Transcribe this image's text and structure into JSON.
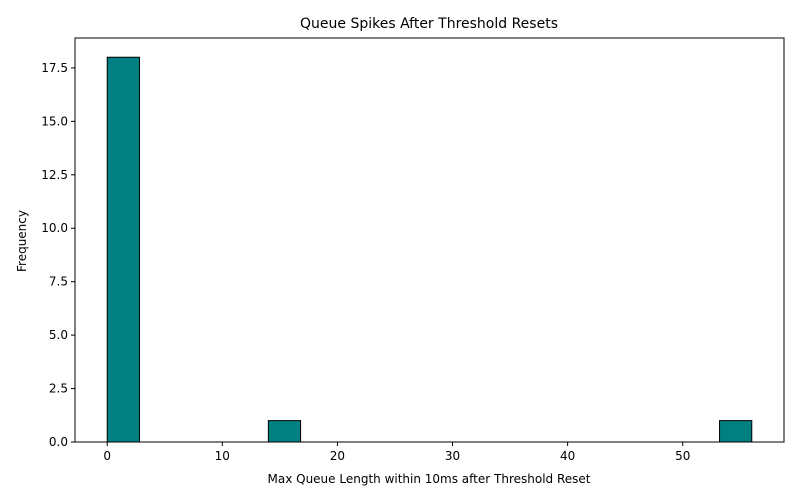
{
  "chart_data": {
    "type": "bar",
    "title": "Queue Spikes After Threshold Resets",
    "xlabel": "Max Queue Length within 10ms after Threshold Reset",
    "ylabel": "Frequency",
    "xlim": [
      -2.8,
      58.8
    ],
    "ylim": [
      0,
      18.9
    ],
    "x_ticks": [
      0,
      10,
      20,
      30,
      40,
      50
    ],
    "y_ticks": [
      0.0,
      2.5,
      5.0,
      7.5,
      10.0,
      12.5,
      15.0,
      17.5
    ],
    "y_tick_labels": [
      "0.0",
      "2.5",
      "5.0",
      "7.5",
      "10.0",
      "12.5",
      "15.0",
      "17.5"
    ],
    "bins": [
      {
        "x0": 0,
        "x1": 2.8,
        "count": 18
      },
      {
        "x0": 14,
        "x1": 16.8,
        "count": 1
      },
      {
        "x0": 53.2,
        "x1": 56,
        "count": 1
      }
    ],
    "grid": false,
    "bar_color": "#008080",
    "edge_color": "#000000"
  }
}
